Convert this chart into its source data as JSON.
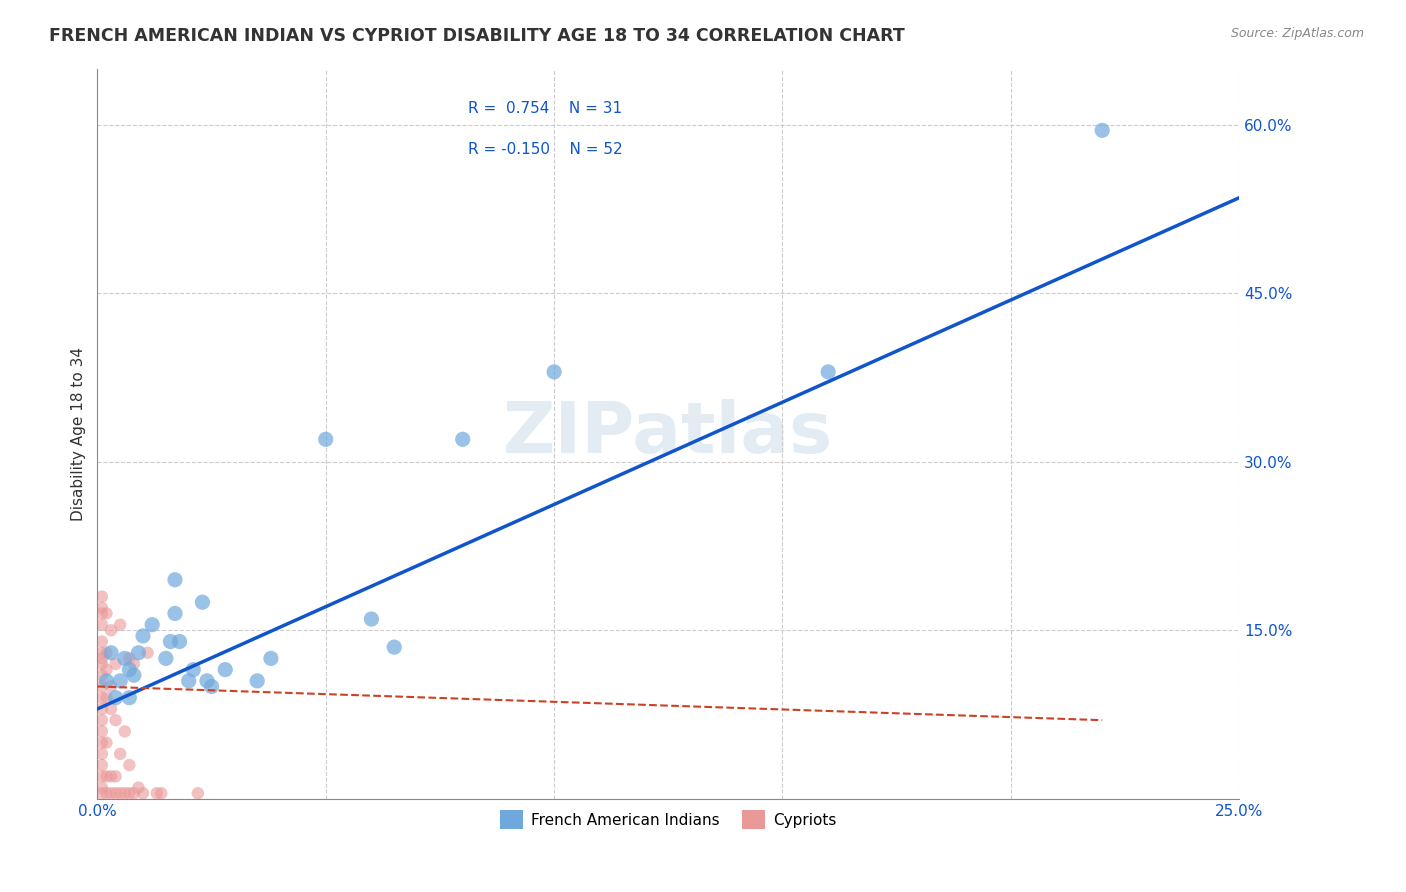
{
  "title": "FRENCH AMERICAN INDIAN VS CYPRIOT DISABILITY AGE 18 TO 34 CORRELATION CHART",
  "source": "Source: ZipAtlas.com",
  "xlabel": "",
  "ylabel": "Disability Age 18 to 34",
  "xmin": 0.0,
  "xmax": 0.25,
  "ymin": 0.0,
  "ymax": 0.65,
  "xticks": [
    0.0,
    0.05,
    0.1,
    0.15,
    0.2,
    0.25
  ],
  "xtick_labels": [
    "0.0%",
    "",
    "",
    "",
    "",
    "25.0%"
  ],
  "yticks": [
    0.0,
    0.15,
    0.3,
    0.45,
    0.6
  ],
  "ytick_labels": [
    "",
    "15.0%",
    "30.0%",
    "45.0%",
    "60.0%"
  ],
  "watermark": "ZIPatlas",
  "legend_r1": "R =  0.754",
  "legend_n1": "N = 31",
  "legend_r2": "R = -0.150",
  "legend_n2": "N = 52",
  "blue_color": "#6fa8dc",
  "pink_color": "#ea9999",
  "line_blue": "#1155cc",
  "line_pink": "#cc4125",
  "blue_scatter": [
    [
      0.002,
      0.105
    ],
    [
      0.003,
      0.13
    ],
    [
      0.004,
      0.09
    ],
    [
      0.005,
      0.105
    ],
    [
      0.006,
      0.125
    ],
    [
      0.007,
      0.09
    ],
    [
      0.007,
      0.115
    ],
    [
      0.008,
      0.11
    ],
    [
      0.009,
      0.13
    ],
    [
      0.01,
      0.145
    ],
    [
      0.012,
      0.155
    ],
    [
      0.015,
      0.125
    ],
    [
      0.016,
      0.14
    ],
    [
      0.017,
      0.165
    ],
    [
      0.017,
      0.195
    ],
    [
      0.018,
      0.14
    ],
    [
      0.02,
      0.105
    ],
    [
      0.021,
      0.115
    ],
    [
      0.023,
      0.175
    ],
    [
      0.024,
      0.105
    ],
    [
      0.025,
      0.1
    ],
    [
      0.028,
      0.115
    ],
    [
      0.035,
      0.105
    ],
    [
      0.038,
      0.125
    ],
    [
      0.05,
      0.32
    ],
    [
      0.06,
      0.16
    ],
    [
      0.065,
      0.135
    ],
    [
      0.08,
      0.32
    ],
    [
      0.1,
      0.38
    ],
    [
      0.16,
      0.38
    ],
    [
      0.22,
      0.595
    ]
  ],
  "pink_scatter": [
    [
      0.001,
      0.005
    ],
    [
      0.001,
      0.01
    ],
    [
      0.001,
      0.02
    ],
    [
      0.001,
      0.03
    ],
    [
      0.001,
      0.04
    ],
    [
      0.001,
      0.05
    ],
    [
      0.001,
      0.06
    ],
    [
      0.001,
      0.07
    ],
    [
      0.001,
      0.08
    ],
    [
      0.001,
      0.09
    ],
    [
      0.001,
      0.1
    ],
    [
      0.001,
      0.11
    ],
    [
      0.001,
      0.12
    ],
    [
      0.001,
      0.125
    ],
    [
      0.001,
      0.13
    ],
    [
      0.001,
      0.14
    ],
    [
      0.001,
      0.155
    ],
    [
      0.001,
      0.165
    ],
    [
      0.001,
      0.17
    ],
    [
      0.001,
      0.18
    ],
    [
      0.002,
      0.005
    ],
    [
      0.002,
      0.02
    ],
    [
      0.002,
      0.05
    ],
    [
      0.002,
      0.09
    ],
    [
      0.002,
      0.115
    ],
    [
      0.002,
      0.13
    ],
    [
      0.002,
      0.165
    ],
    [
      0.003,
      0.005
    ],
    [
      0.003,
      0.02
    ],
    [
      0.003,
      0.08
    ],
    [
      0.003,
      0.1
    ],
    [
      0.003,
      0.15
    ],
    [
      0.004,
      0.005
    ],
    [
      0.004,
      0.02
    ],
    [
      0.004,
      0.07
    ],
    [
      0.004,
      0.12
    ],
    [
      0.005,
      0.005
    ],
    [
      0.005,
      0.04
    ],
    [
      0.005,
      0.155
    ],
    [
      0.006,
      0.005
    ],
    [
      0.006,
      0.06
    ],
    [
      0.007,
      0.005
    ],
    [
      0.007,
      0.03
    ],
    [
      0.007,
      0.125
    ],
    [
      0.008,
      0.005
    ],
    [
      0.008,
      0.12
    ],
    [
      0.009,
      0.01
    ],
    [
      0.01,
      0.005
    ],
    [
      0.011,
      0.13
    ],
    [
      0.013,
      0.005
    ],
    [
      0.014,
      0.005
    ],
    [
      0.022,
      0.005
    ]
  ]
}
